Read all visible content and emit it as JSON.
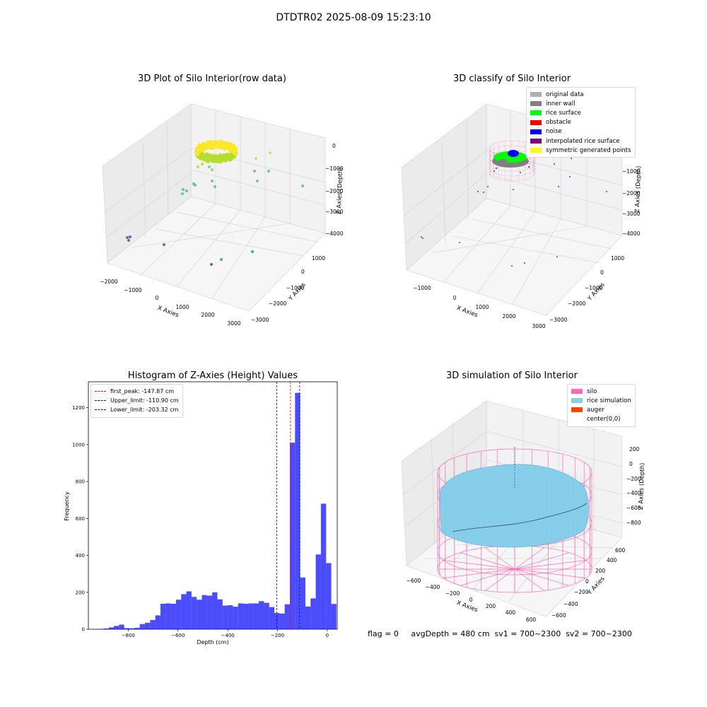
{
  "suptitle": "DTDTR02 2025-08-09 15:23:10",
  "footer_text": "flag = 0     avgDepth = 480 cm  sv1 = 700~2300  sv2 = 700~2300",
  "chart_data": [
    {
      "type": "scatter",
      "title": "3D Plot of Silo Interior(row data)",
      "xlabel": "X Axies",
      "ylabel": "Y Axies",
      "zlabel": "Z Axies (Depth)",
      "x_ticks": [
        "−2000",
        "−1000",
        "0",
        "1000",
        "2000",
        "3000"
      ],
      "y_ticks": [
        "1000",
        "0",
        "−1000",
        "−2000",
        "−3000"
      ],
      "z_ticks": [
        "0",
        "−1000",
        "−2000",
        "−3000",
        "−4000"
      ],
      "grid": true,
      "colormap": "viridis"
    },
    {
      "type": "scatter",
      "title": "3D classify of Silo Interior",
      "xlabel": "X Axies",
      "ylabel": "Y Axies",
      "zlabel": "Z Axies (Depth)",
      "x_ticks": [
        "−1000",
        "0",
        "1000",
        "2000",
        "3000"
      ],
      "y_ticks": [
        "1000",
        "0",
        "−1000",
        "−2000",
        "−3000"
      ],
      "z_ticks": [
        "0",
        "−1000",
        "−2000",
        "−3000",
        "−4000"
      ],
      "grid": true,
      "legend": [
        {
          "label": "original data",
          "color": "#b0b0b0"
        },
        {
          "label": "inner wall",
          "color": "#808080"
        },
        {
          "label": "rice surface",
          "color": "#00ff00"
        },
        {
          "label": "obstacle",
          "color": "#ff0000"
        },
        {
          "label": "noise",
          "color": "#0000ff"
        },
        {
          "label": "interpolated rice surface",
          "color": "#800080"
        },
        {
          "label": "symmetric generated points",
          "color": "#ffff00"
        }
      ],
      "legend_position": "top-right"
    },
    {
      "type": "bar",
      "title": "Histogram of Z-Axies (Height) Values",
      "xlabel": "Depth (cm)",
      "ylabel": "Frequency",
      "xlim": [
        -960,
        40
      ],
      "ylim": [
        0,
        1340
      ],
      "x_ticks": [
        -800,
        -600,
        -400,
        -200,
        0
      ],
      "x_tick_labels": [
        "−800",
        "−600",
        "−400",
        "−200",
        "0"
      ],
      "y_ticks": [
        0,
        200,
        400,
        600,
        800,
        1000,
        1200
      ],
      "bin_start": -920,
      "bin_width": 20.8,
      "values": [
        2,
        4,
        10,
        18,
        25,
        6,
        5,
        8,
        28,
        35,
        50,
        75,
        138,
        140,
        138,
        160,
        190,
        205,
        175,
        160,
        185,
        182,
        200,
        162,
        128,
        130,
        122,
        140,
        138,
        140,
        140,
        152,
        143,
        120,
        88,
        85,
        135,
        1010,
        1280,
        280,
        123,
        167,
        405,
        680,
        358,
        137
      ],
      "bar_color": "#0000ff",
      "vlines": [
        {
          "label": "first_peak: -147.87 cm",
          "x": -147.87,
          "color": "#ff0000"
        },
        {
          "label": "Upper_limit: -110.90 cm",
          "x": -110.9,
          "color": "#0000aa"
        },
        {
          "label": "Lower_limit: -203.32 cm",
          "x": -203.32,
          "color": "#0000aa"
        }
      ],
      "legend_position": "top-left"
    },
    {
      "type": "other",
      "title": "3D simulation of Silo Interior",
      "xlabel": "X Axies",
      "ylabel": "Y Axies",
      "zlabel": "Z Axies (Depth)",
      "x_ticks": [
        "−600",
        "−400",
        "−200",
        "0",
        "200",
        "400",
        "600"
      ],
      "y_ticks": [
        "600",
        "400",
        "200",
        "0",
        "−200",
        "−400",
        "−600"
      ],
      "z_ticks": [
        "200",
        "0",
        "−200",
        "−400",
        "−600",
        "−800"
      ],
      "grid": true,
      "legend": [
        {
          "label": "silo",
          "color": "#ff69b4"
        },
        {
          "label": "rice simulation",
          "color": "#87ceeb"
        },
        {
          "label": "auger",
          "color": "#ff4500"
        },
        {
          "label": "center(0,0)",
          "color": "#ffffff"
        }
      ],
      "legend_position": "top-right"
    }
  ]
}
